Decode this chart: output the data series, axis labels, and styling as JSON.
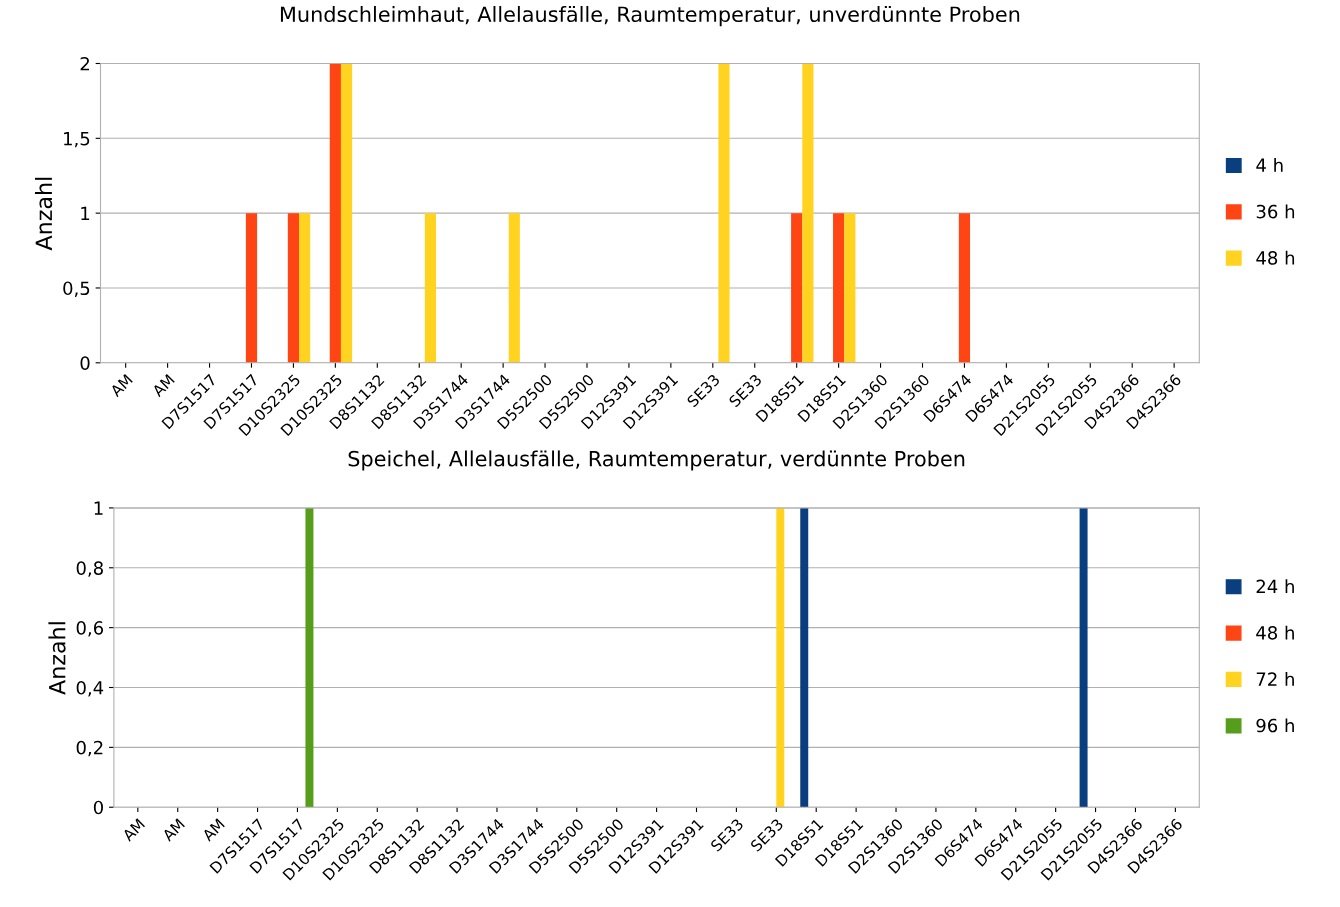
{
  "chart_data": [
    {
      "type": "bar",
      "title": "Mundschleimhaut, Allelausfälle, Raumtemperatur, unverdünnte Proben",
      "ylabel": "Anzahl",
      "categories": [
        "AM",
        "AM",
        "D7S1517",
        "D7S1517",
        "D10S2325",
        "D10S2325",
        "D8S1132",
        "D8S1132",
        "D3S1744",
        "D3S1744",
        "D5S2500",
        "D5S2500",
        "D12S391",
        "D12S391",
        "SE33",
        "SE33",
        "D18S51",
        "D18S51",
        "D2S1360",
        "D2S1360",
        "D6S474",
        "D6S474",
        "D21S2055",
        "D21S2055",
        "D4S2366",
        "D4S2366"
      ],
      "series": [
        {
          "name": "4 h",
          "color": "#0a3f7f",
          "values": [
            0,
            0,
            0,
            0,
            0,
            0,
            0,
            0,
            0,
            0,
            0,
            0,
            0,
            0,
            0,
            0,
            0,
            0,
            0,
            0,
            0,
            0,
            0,
            0,
            0,
            0
          ]
        },
        {
          "name": "36 h",
          "color": "#ff4513",
          "values": [
            0,
            0,
            0,
            1,
            1,
            2,
            0,
            0,
            0,
            0,
            0,
            0,
            0,
            0,
            0,
            0,
            1,
            1,
            0,
            0,
            1,
            0,
            0,
            0,
            0,
            0
          ]
        },
        {
          "name": "48 h",
          "color": "#ffd320",
          "values": [
            0,
            0,
            0,
            0,
            1,
            2,
            0,
            1,
            0,
            1,
            0,
            0,
            0,
            0,
            2,
            0,
            2,
            1,
            0,
            0,
            0,
            0,
            0,
            0,
            0,
            0
          ]
        }
      ],
      "ylim": [
        0,
        2
      ],
      "yticks": [
        0,
        {
          "value": 0.5,
          "label": "0,5"
        },
        1,
        {
          "value": 1.5,
          "label": "1,5"
        },
        2
      ],
      "grid": "y",
      "legend": "right"
    },
    {
      "type": "bar",
      "title": "Speichel, Allelausfälle, Raumtemperatur, verdünnte Proben",
      "ylabel": "Anzahl",
      "categories": [
        "AM",
        "AM",
        "AM",
        "D7S1517",
        "D7S1517",
        "D10S2325",
        "D10S2325",
        "D8S1132",
        "D8S1132",
        "D3S1744",
        "D3S1744",
        "D5S2500",
        "D5S2500",
        "D12S391",
        "D12S391",
        "SE33",
        "SE33",
        "D18S51",
        "D18S51",
        "D2S1360",
        "D2S1360",
        "D6S474",
        "D6S474",
        "D21S2055",
        "D21S2055",
        "D4S2366",
        "D4S2366"
      ],
      "series": [
        {
          "name": "24 h",
          "color": "#0a3f7f",
          "values": [
            0,
            0,
            0,
            0,
            0,
            0,
            0,
            0,
            0,
            0,
            0,
            0,
            0,
            0,
            0,
            0,
            0,
            1,
            0,
            0,
            0,
            0,
            0,
            0,
            1,
            0,
            0
          ]
        },
        {
          "name": "48 h",
          "color": "#ff4513",
          "values": [
            0,
            0,
            0,
            0,
            0,
            0,
            0,
            0,
            0,
            0,
            0,
            0,
            0,
            0,
            0,
            0,
            0,
            0,
            0,
            0,
            0,
            0,
            0,
            0,
            0,
            0,
            0
          ]
        },
        {
          "name": "72 h",
          "color": "#ffd320",
          "values": [
            0,
            0,
            0,
            0,
            0,
            0,
            0,
            0,
            0,
            0,
            0,
            0,
            0,
            0,
            0,
            0,
            1,
            0,
            0,
            0,
            0,
            0,
            0,
            0,
            0,
            0,
            0
          ]
        },
        {
          "name": "96 h",
          "color": "#579d1c",
          "values": [
            0,
            0,
            0,
            0,
            1,
            0,
            0,
            0,
            0,
            0,
            0,
            0,
            0,
            0,
            0,
            0,
            0,
            0,
            0,
            0,
            0,
            0,
            0,
            0,
            0,
            0,
            0
          ]
        }
      ],
      "ylim": [
        0,
        1
      ],
      "yticks": [
        0,
        {
          "value": 0.2,
          "label": "0,2"
        },
        {
          "value": 0.4,
          "label": "0,4"
        },
        {
          "value": 0.6,
          "label": "0,6"
        },
        {
          "value": 0.8,
          "label": "0,8"
        },
        1
      ],
      "grid": "y",
      "legend": "right"
    }
  ]
}
